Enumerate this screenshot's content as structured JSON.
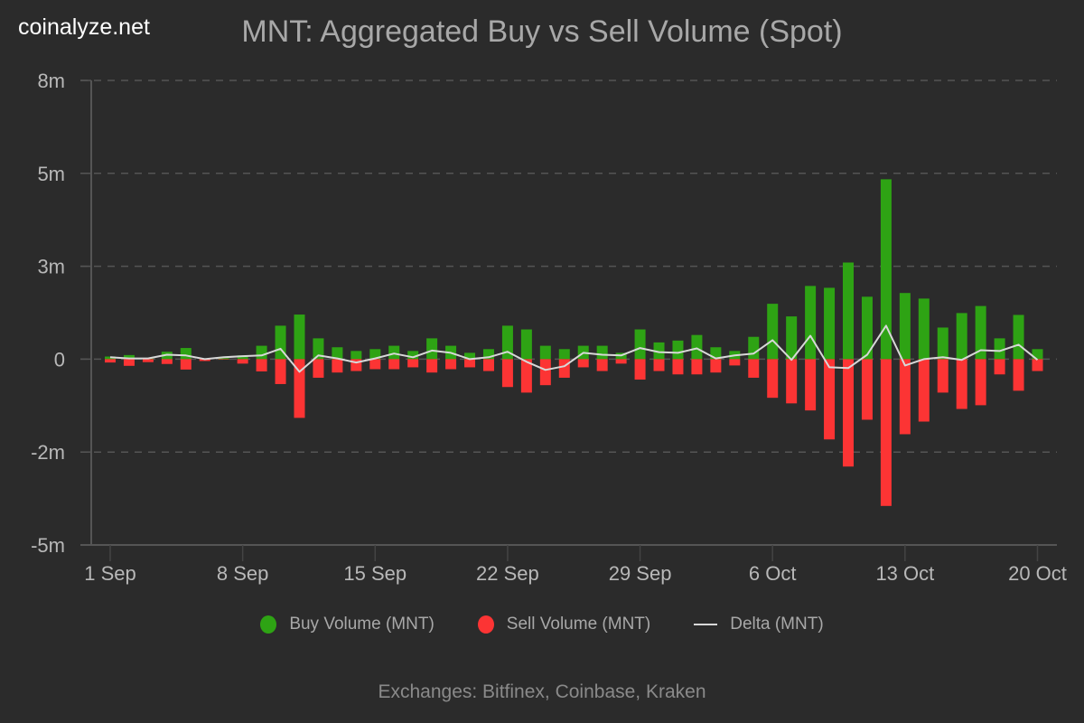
{
  "brand": "coinalyze.net",
  "footer": "Exchanges: Bitfinex, Coinbase, Kraken",
  "legend": [
    {
      "label": "Buy Volume (MNT)",
      "color": "#2ea314",
      "kind": "dot"
    },
    {
      "label": "Sell Volume (MNT)",
      "color": "#fc3434",
      "kind": "dot"
    },
    {
      "label": "Delta (MNT)",
      "color": "#d8d8d8",
      "kind": "line"
    }
  ],
  "chart_data": {
    "type": "bar",
    "title": "MNT: Aggregated Buy vs Sell Volume (Spot)",
    "xlabel": "",
    "ylabel": "",
    "units": "millions MNT",
    "ylim": [
      -5,
      7.5
    ],
    "y_ticks": [
      {
        "value": 7.5,
        "label": "8m"
      },
      {
        "value": 5,
        "label": "5m"
      },
      {
        "value": 2.5,
        "label": "3m"
      },
      {
        "value": 0,
        "label": "0"
      },
      {
        "value": -2.5,
        "label": "-2m"
      },
      {
        "value": -5,
        "label": "-5m"
      }
    ],
    "x_ticks": [
      {
        "index": 0,
        "label": "1 Sep"
      },
      {
        "index": 7,
        "label": "8 Sep"
      },
      {
        "index": 14,
        "label": "15 Sep"
      },
      {
        "index": 21,
        "label": "22 Sep"
      },
      {
        "index": 28,
        "label": "29 Sep"
      },
      {
        "index": 35,
        "label": "6 Oct"
      },
      {
        "index": 42,
        "label": "13 Oct"
      },
      {
        "index": 49,
        "label": "20 Oct"
      }
    ],
    "grid": true,
    "legend_position": "bottom",
    "categories": [
      "1 Sep",
      "2 Sep",
      "3 Sep",
      "4 Sep",
      "5 Sep",
      "6 Sep",
      "7 Sep",
      "8 Sep",
      "9 Sep",
      "10 Sep",
      "11 Sep",
      "12 Sep",
      "13 Sep",
      "14 Sep",
      "15 Sep",
      "16 Sep",
      "17 Sep",
      "18 Sep",
      "19 Sep",
      "20 Sep",
      "21 Sep",
      "22 Sep",
      "23 Sep",
      "24 Sep",
      "25 Sep",
      "26 Sep",
      "27 Sep",
      "28 Sep",
      "29 Sep",
      "30 Sep",
      "1 Oct",
      "2 Oct",
      "3 Oct",
      "4 Oct",
      "5 Oct",
      "6 Oct",
      "7 Oct",
      "8 Oct",
      "9 Oct",
      "10 Oct",
      "11 Oct",
      "12 Oct",
      "13 Oct",
      "14 Oct",
      "15 Oct",
      "16 Oct",
      "17 Oct",
      "18 Oct",
      "19 Oct",
      "20 Oct"
    ],
    "series": [
      {
        "name": "Buy Volume (MNT)",
        "type": "bar",
        "color": "#2ea314",
        "values": [
          0.07,
          0.11,
          0.02,
          0.2,
          0.3,
          0.0,
          0.03,
          0.1,
          0.36,
          0.9,
          1.2,
          0.56,
          0.32,
          0.22,
          0.27,
          0.36,
          0.22,
          0.56,
          0.36,
          0.17,
          0.27,
          0.9,
          0.8,
          0.36,
          0.27,
          0.36,
          0.36,
          0.17,
          0.8,
          0.45,
          0.5,
          0.65,
          0.32,
          0.22,
          0.6,
          1.49,
          1.15,
          1.97,
          1.92,
          2.6,
          1.68,
          4.84,
          1.78,
          1.63,
          0.85,
          1.24,
          1.43,
          0.56,
          1.19,
          0.27
        ]
      },
      {
        "name": "Sell Volume (MNT)",
        "type": "bar",
        "color": "#fc3434",
        "values": [
          -0.09,
          -0.18,
          -0.08,
          -0.13,
          -0.28,
          -0.05,
          -0.01,
          -0.12,
          -0.33,
          -0.67,
          -1.58,
          -0.5,
          -0.36,
          -0.32,
          -0.27,
          -0.27,
          -0.22,
          -0.36,
          -0.27,
          -0.22,
          -0.32,
          -0.75,
          -0.9,
          -0.7,
          -0.5,
          -0.22,
          -0.32,
          -0.12,
          -0.55,
          -0.32,
          -0.41,
          -0.41,
          -0.36,
          -0.17,
          -0.5,
          -1.04,
          -1.19,
          -1.38,
          -2.16,
          -2.89,
          -1.63,
          -3.95,
          -2.02,
          -1.68,
          -0.9,
          -1.34,
          -1.24,
          -0.41,
          -0.85,
          -0.32
        ]
      },
      {
        "name": "Delta (MNT)",
        "type": "line",
        "color": "#d8d8d8",
        "values": [
          0.05,
          0.02,
          0.02,
          0.12,
          0.1,
          0.0,
          0.05,
          0.08,
          0.1,
          0.28,
          -0.34,
          0.1,
          0.02,
          -0.09,
          0.02,
          0.15,
          0.05,
          0.23,
          0.17,
          0.0,
          0.05,
          0.2,
          -0.07,
          -0.29,
          -0.19,
          0.17,
          0.12,
          0.1,
          0.3,
          0.19,
          0.17,
          0.29,
          0.02,
          0.1,
          0.15,
          0.51,
          -0.02,
          0.63,
          -0.22,
          -0.24,
          0.12,
          0.9,
          -0.17,
          0.0,
          0.05,
          -0.02,
          0.24,
          0.22,
          0.39,
          -0.02
        ]
      }
    ]
  }
}
